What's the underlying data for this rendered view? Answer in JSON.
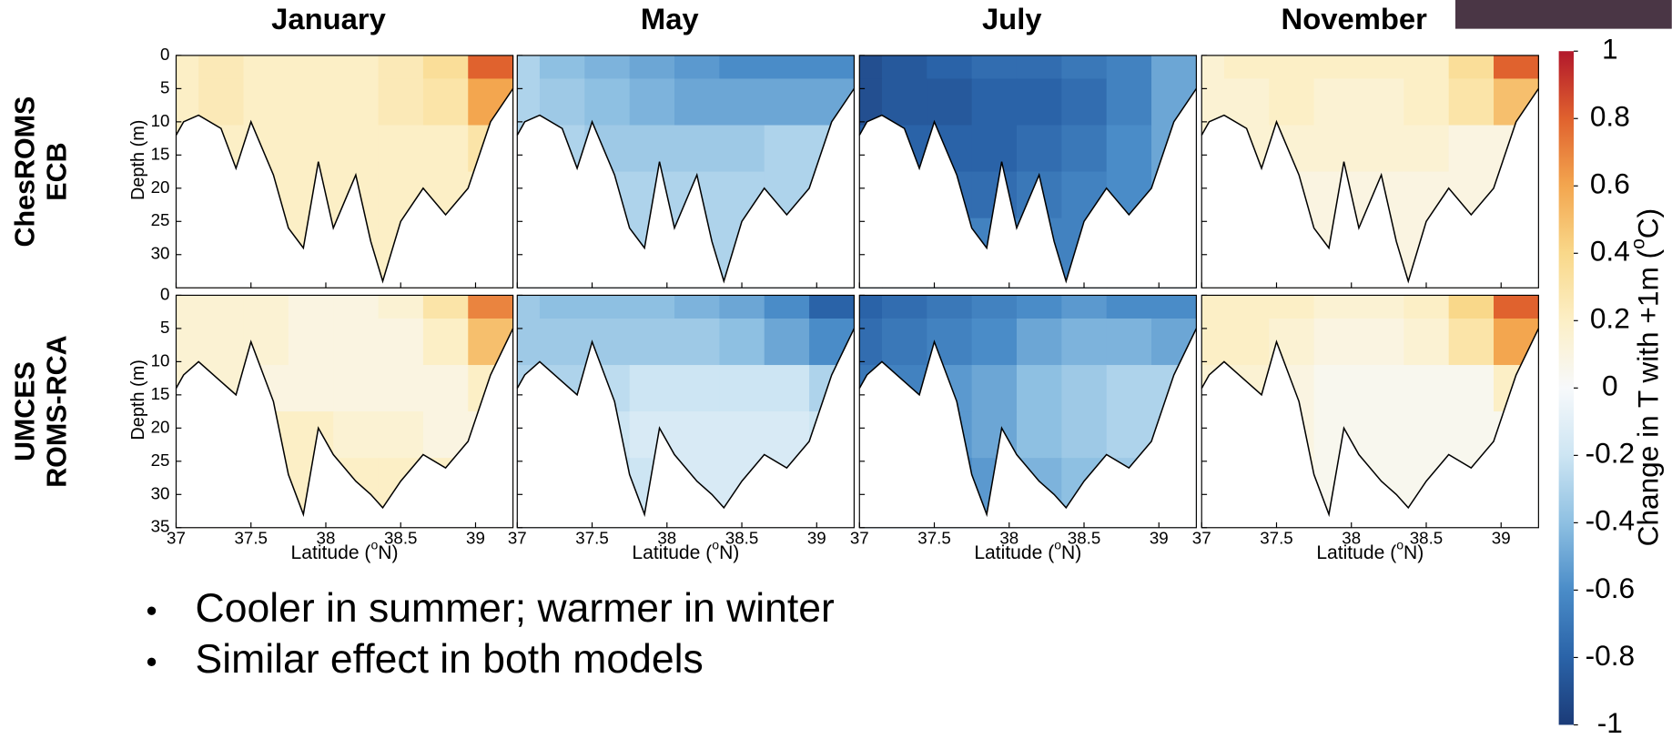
{
  "chart_data": [
    {
      "type": "contour",
      "title": "January",
      "row_label": [
        "ChesROMS",
        "ECB"
      ],
      "ylabel": "Depth (m)",
      "xlim": [
        37,
        39.25
      ],
      "ylim": [
        0,
        35
      ],
      "y_reversed": true,
      "yticks": [
        0,
        5,
        10,
        15,
        20,
        25,
        30
      ],
      "x": [
        37,
        37.3,
        37.6,
        37.9,
        38.2,
        38.5,
        38.8,
        39.1
      ],
      "depth": [
        0,
        7,
        14,
        21,
        28
      ],
      "values": [
        [
          0.2,
          0.25,
          0.2,
          0.2,
          0.2,
          0.25,
          0.35,
          0.8
        ],
        [
          0.2,
          0.25,
          0.2,
          0.2,
          0.2,
          0.25,
          0.3,
          0.6
        ],
        [
          0.2,
          0.2,
          0.2,
          0.2,
          0.2,
          0.2,
          0.2,
          0.3
        ],
        [
          0.2,
          0.2,
          0.2,
          0.2,
          0.2,
          0.2,
          0.2,
          0.2
        ],
        [
          0.2,
          0.2,
          0.2,
          0.2,
          0.2,
          0.2,
          0.2,
          0.2
        ]
      ],
      "bathymetry": {
        "lat": [
          37,
          37.05,
          37.15,
          37.3,
          37.4,
          37.5,
          37.65,
          37.75,
          37.85,
          37.95,
          38.05,
          38.2,
          38.3,
          38.38,
          38.5,
          38.65,
          38.8,
          38.95,
          39.1,
          39.25
        ],
        "depth": [
          12,
          10,
          9,
          11,
          17,
          10,
          18,
          26,
          29,
          16,
          26,
          18,
          28,
          34,
          25,
          20,
          24,
          20,
          10,
          5
        ]
      }
    },
    {
      "type": "contour",
      "title": "May",
      "xlim": [
        37,
        39.25
      ],
      "ylim": [
        0,
        35
      ],
      "y_reversed": true,
      "x": [
        37,
        37.3,
        37.6,
        37.9,
        38.2,
        38.5,
        38.8,
        39.1
      ],
      "depth": [
        0,
        7,
        14,
        21,
        28
      ],
      "values": [
        [
          -0.3,
          -0.4,
          -0.45,
          -0.5,
          -0.55,
          -0.6,
          -0.6,
          -0.6
        ],
        [
          -0.3,
          -0.35,
          -0.4,
          -0.45,
          -0.5,
          -0.5,
          -0.5,
          -0.5
        ],
        [
          -0.3,
          -0.3,
          -0.35,
          -0.35,
          -0.35,
          -0.35,
          -0.3,
          -0.3
        ],
        [
          -0.3,
          -0.3,
          -0.3,
          -0.3,
          -0.3,
          -0.3,
          -0.3,
          -0.3
        ],
        [
          -0.3,
          -0.3,
          -0.3,
          -0.3,
          -0.3,
          -0.3,
          -0.3,
          -0.3
        ]
      ],
      "bathymetry": {
        "lat": [
          37,
          37.05,
          37.15,
          37.3,
          37.4,
          37.5,
          37.65,
          37.75,
          37.85,
          37.95,
          38.05,
          38.2,
          38.3,
          38.38,
          38.5,
          38.65,
          38.8,
          38.95,
          39.1,
          39.25
        ],
        "depth": [
          12,
          10,
          9,
          11,
          17,
          10,
          18,
          26,
          29,
          16,
          26,
          18,
          28,
          34,
          25,
          20,
          24,
          20,
          10,
          5
        ]
      }
    },
    {
      "type": "contour",
      "title": "July",
      "xlim": [
        37,
        39.25
      ],
      "ylim": [
        0,
        35
      ],
      "y_reversed": true,
      "x": [
        37,
        37.3,
        37.6,
        37.9,
        38.2,
        38.5,
        38.8,
        39.1
      ],
      "depth": [
        0,
        7,
        14,
        21,
        28
      ],
      "values": [
        [
          -0.9,
          -0.85,
          -0.8,
          -0.75,
          -0.75,
          -0.7,
          -0.65,
          -0.5
        ],
        [
          -0.9,
          -0.85,
          -0.85,
          -0.8,
          -0.8,
          -0.75,
          -0.65,
          -0.5
        ],
        [
          -0.8,
          -0.8,
          -0.8,
          -0.8,
          -0.75,
          -0.7,
          -0.6,
          -0.5
        ],
        [
          -0.7,
          -0.7,
          -0.75,
          -0.75,
          -0.7,
          -0.65,
          -0.6,
          -0.5
        ],
        [
          -0.65,
          -0.65,
          -0.65,
          -0.65,
          -0.65,
          -0.65,
          -0.65,
          -0.65
        ]
      ],
      "bathymetry": {
        "lat": [
          37,
          37.05,
          37.15,
          37.3,
          37.4,
          37.5,
          37.65,
          37.75,
          37.85,
          37.95,
          38.05,
          38.2,
          38.3,
          38.38,
          38.5,
          38.65,
          38.8,
          38.95,
          39.1,
          39.25
        ],
        "depth": [
          12,
          10,
          9,
          11,
          17,
          10,
          18,
          26,
          29,
          16,
          26,
          18,
          28,
          34,
          25,
          20,
          24,
          20,
          10,
          5
        ]
      }
    },
    {
      "type": "contour",
      "title": "November",
      "xlim": [
        37,
        39.25
      ],
      "ylim": [
        0,
        35
      ],
      "y_reversed": true,
      "x": [
        37,
        37.3,
        37.6,
        37.9,
        38.2,
        38.5,
        38.8,
        39.1
      ],
      "depth": [
        0,
        7,
        14,
        21,
        28
      ],
      "values": [
        [
          0.15,
          0.2,
          0.2,
          0.2,
          0.2,
          0.2,
          0.35,
          0.8
        ],
        [
          0.15,
          0.15,
          0.2,
          0.15,
          0.15,
          0.2,
          0.3,
          0.5
        ],
        [
          0.15,
          0.15,
          0.15,
          0.15,
          0.15,
          0.15,
          0.1,
          0.1
        ],
        [
          0.1,
          0.1,
          0.1,
          0.1,
          0.1,
          0.1,
          0.1,
          0.1
        ],
        [
          0.1,
          0.1,
          0.1,
          0.1,
          0.1,
          0.1,
          0.1,
          0.1
        ]
      ],
      "bathymetry": {
        "lat": [
          37,
          37.05,
          37.15,
          37.3,
          37.4,
          37.5,
          37.65,
          37.75,
          37.85,
          37.95,
          38.05,
          38.2,
          38.3,
          38.38,
          38.5,
          38.65,
          38.8,
          38.95,
          39.1,
          39.25
        ],
        "depth": [
          12,
          10,
          9,
          11,
          17,
          10,
          18,
          26,
          29,
          16,
          26,
          18,
          28,
          34,
          25,
          20,
          24,
          20,
          10,
          5
        ]
      }
    },
    {
      "type": "contour",
      "row_label": [
        "UMCES",
        "ROMS-RCA"
      ],
      "ylabel": "Depth (m)",
      "xlabel": [
        "Latitude (",
        "o",
        "N)"
      ],
      "xlim": [
        37,
        39.25
      ],
      "ylim": [
        0,
        35
      ],
      "y_reversed": true,
      "yticks": [
        0,
        5,
        10,
        15,
        20,
        25,
        30,
        35
      ],
      "xticks": [
        37,
        37.5,
        38,
        38.5,
        39
      ],
      "x": [
        37,
        37.3,
        37.6,
        37.9,
        38.2,
        38.5,
        38.8,
        39.1
      ],
      "depth": [
        0,
        7,
        14,
        21,
        28
      ],
      "values": [
        [
          0.15,
          0.15,
          0.15,
          0.1,
          0.1,
          0.15,
          0.3,
          0.7
        ],
        [
          0.15,
          0.15,
          0.15,
          0.1,
          0.1,
          0.1,
          0.2,
          0.5
        ],
        [
          0.15,
          0.15,
          0.1,
          0.1,
          0.1,
          0.1,
          0.1,
          0.2
        ],
        [
          0.2,
          0.2,
          0.2,
          0.2,
          0.15,
          0.15,
          0.1,
          0.1
        ],
        [
          0.2,
          0.2,
          0.2,
          0.2,
          0.2,
          0.2,
          0.2,
          0.2
        ]
      ],
      "bathymetry": {
        "lat": [
          37,
          37.05,
          37.15,
          37.3,
          37.4,
          37.5,
          37.65,
          37.75,
          37.85,
          37.95,
          38.05,
          38.2,
          38.3,
          38.38,
          38.5,
          38.65,
          38.8,
          38.95,
          39.1,
          39.25
        ],
        "depth": [
          14,
          12,
          10,
          13,
          15,
          7,
          16,
          27,
          33,
          20,
          24,
          28,
          30,
          32,
          28,
          24,
          26,
          22,
          12,
          5
        ]
      }
    },
    {
      "type": "contour",
      "xlabel": [
        "Latitude (",
        "o",
        "N)"
      ],
      "xlim": [
        37,
        39.25
      ],
      "ylim": [
        0,
        35
      ],
      "y_reversed": true,
      "xticks": [
        37,
        37.5,
        38,
        38.5,
        39
      ],
      "x": [
        37,
        37.3,
        37.6,
        37.9,
        38.2,
        38.5,
        38.8,
        39.1
      ],
      "depth": [
        0,
        7,
        14,
        21,
        28
      ],
      "values": [
        [
          -0.35,
          -0.4,
          -0.4,
          -0.4,
          -0.45,
          -0.5,
          -0.6,
          -0.8
        ],
        [
          -0.35,
          -0.35,
          -0.35,
          -0.35,
          -0.35,
          -0.4,
          -0.5,
          -0.6
        ],
        [
          -0.3,
          -0.3,
          -0.25,
          -0.2,
          -0.2,
          -0.2,
          -0.2,
          -0.3
        ],
        [
          -0.3,
          -0.3,
          -0.2,
          -0.15,
          -0.15,
          -0.15,
          -0.15,
          -0.2
        ],
        [
          -0.3,
          -0.3,
          -0.25,
          -0.2,
          -0.15,
          -0.15,
          -0.15,
          -0.2
        ]
      ],
      "bathymetry": {
        "lat": [
          37,
          37.05,
          37.15,
          37.3,
          37.4,
          37.5,
          37.65,
          37.75,
          37.85,
          37.95,
          38.05,
          38.2,
          38.3,
          38.38,
          38.5,
          38.65,
          38.8,
          38.95,
          39.1,
          39.25
        ],
        "depth": [
          14,
          12,
          10,
          13,
          15,
          7,
          16,
          27,
          33,
          20,
          24,
          28,
          30,
          32,
          28,
          24,
          26,
          22,
          12,
          5
        ]
      }
    },
    {
      "type": "contour",
      "xlabel": [
        "Latitude (",
        "o",
        "N)"
      ],
      "xlim": [
        37,
        39.25
      ],
      "ylim": [
        0,
        35
      ],
      "y_reversed": true,
      "xticks": [
        37,
        37.5,
        38,
        38.5,
        39
      ],
      "x": [
        37,
        37.3,
        37.6,
        37.9,
        38.2,
        38.5,
        38.8,
        39.1
      ],
      "depth": [
        0,
        7,
        14,
        21,
        28
      ],
      "values": [
        [
          -0.8,
          -0.75,
          -0.7,
          -0.65,
          -0.6,
          -0.55,
          -0.6,
          -0.6
        ],
        [
          -0.75,
          -0.7,
          -0.65,
          -0.6,
          -0.5,
          -0.45,
          -0.45,
          -0.5
        ],
        [
          -0.7,
          -0.65,
          -0.55,
          -0.5,
          -0.4,
          -0.35,
          -0.3,
          -0.3
        ],
        [
          -0.65,
          -0.6,
          -0.55,
          -0.5,
          -0.4,
          -0.35,
          -0.3,
          -0.3
        ],
        [
          -0.6,
          -0.6,
          -0.6,
          -0.55,
          -0.45,
          -0.4,
          -0.35,
          -0.3
        ]
      ],
      "bathymetry": {
        "lat": [
          37,
          37.05,
          37.15,
          37.3,
          37.4,
          37.5,
          37.65,
          37.75,
          37.85,
          37.95,
          38.05,
          38.2,
          38.3,
          38.38,
          38.5,
          38.65,
          38.8,
          38.95,
          39.1,
          39.25
        ],
        "depth": [
          14,
          12,
          10,
          13,
          15,
          7,
          16,
          27,
          33,
          20,
          24,
          28,
          30,
          32,
          28,
          24,
          26,
          22,
          12,
          5
        ]
      }
    },
    {
      "type": "contour",
      "xlabel": [
        "Latitude (",
        "o",
        "N)"
      ],
      "xlim": [
        37,
        39.25
      ],
      "ylim": [
        0,
        35
      ],
      "y_reversed": true,
      "xticks": [
        37,
        37.5,
        38,
        38.5,
        39
      ],
      "x": [
        37,
        37.3,
        37.6,
        37.9,
        38.2,
        38.5,
        38.8,
        39.1
      ],
      "depth": [
        0,
        7,
        14,
        21,
        28
      ],
      "values": [
        [
          0.2,
          0.2,
          0.2,
          0.15,
          0.15,
          0.2,
          0.4,
          0.8
        ],
        [
          0.2,
          0.2,
          0.15,
          0.1,
          0.1,
          0.15,
          0.3,
          0.6
        ],
        [
          0.15,
          0.15,
          0.1,
          0.05,
          0.05,
          0.05,
          0.05,
          0.2
        ],
        [
          0.15,
          0.15,
          0.1,
          0.05,
          0.05,
          0.05,
          0.05,
          0.05
        ],
        [
          0.15,
          0.15,
          0.1,
          0.05,
          0.05,
          0.05,
          0.05,
          0.05
        ]
      ],
      "bathymetry": {
        "lat": [
          37,
          37.05,
          37.15,
          37.3,
          37.4,
          37.5,
          37.65,
          37.75,
          37.85,
          37.95,
          38.05,
          38.2,
          38.3,
          38.38,
          38.5,
          38.65,
          38.8,
          38.95,
          39.1,
          39.25
        ],
        "depth": [
          14,
          12,
          10,
          13,
          15,
          7,
          16,
          27,
          33,
          20,
          24,
          28,
          30,
          32,
          28,
          24,
          26,
          22,
          12,
          5
        ]
      }
    }
  ],
  "colorbar": {
    "label": [
      "Change in T with +1m (",
      "o",
      "C)"
    ],
    "clim": [
      -1,
      1
    ],
    "ticks": [
      1,
      0.8,
      0.6,
      0.4,
      0.2,
      0,
      -0.2,
      -0.4,
      -0.6,
      -0.8,
      -1
    ],
    "colors": [
      "#1b3b78",
      "#2a63a8",
      "#4a8cc8",
      "#8ec0e2",
      "#cde5f3",
      "#f7f9fb",
      "#fcefc6",
      "#f9d88a",
      "#f3a64f",
      "#e0622e",
      "#b2182b"
    ]
  },
  "bullets": [
    "Cooler in summer; warmer in winter",
    "Similar effect in both models"
  ]
}
